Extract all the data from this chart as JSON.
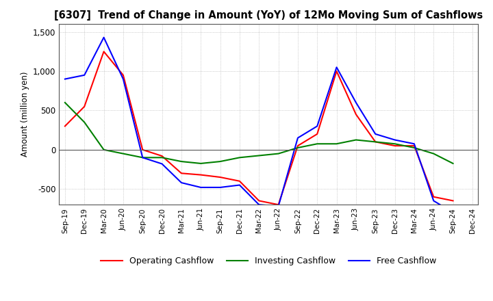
{
  "title": "[6307]  Trend of Change in Amount (YoY) of 12Mo Moving Sum of Cashflows",
  "ylabel": "Amount (million yen)",
  "ylim": [
    -700,
    1600
  ],
  "yticks": [
    -500,
    0,
    500,
    1000,
    1500
  ],
  "x_labels": [
    "Sep-19",
    "Dec-19",
    "Mar-20",
    "Jun-20",
    "Sep-20",
    "Dec-20",
    "Mar-21",
    "Jun-21",
    "Sep-21",
    "Dec-21",
    "Mar-22",
    "Jun-22",
    "Sep-22",
    "Dec-22",
    "Mar-23",
    "Jun-23",
    "Sep-23",
    "Dec-23",
    "Mar-24",
    "Jun-24",
    "Sep-24",
    "Dec-24"
  ],
  "operating": [
    300,
    550,
    1250,
    950,
    0,
    -80,
    -300,
    -320,
    -350,
    -400,
    -650,
    -700,
    50,
    200,
    1000,
    450,
    100,
    50,
    50,
    -600,
    -650,
    null
  ],
  "investing": [
    600,
    350,
    0,
    -50,
    -100,
    -100,
    -150,
    -175,
    -150,
    -100,
    -75,
    -50,
    25,
    75,
    75,
    125,
    100,
    75,
    25,
    -50,
    -175,
    null
  ],
  "free": [
    900,
    950,
    1430,
    900,
    -100,
    -180,
    -420,
    -480,
    -480,
    -450,
    -700,
    -720,
    150,
    300,
    1050,
    600,
    200,
    125,
    75,
    -650,
    -800,
    null
  ],
  "operating_color": "#ff0000",
  "investing_color": "#008000",
  "free_color": "#0000ff",
  "bg_color": "#ffffff",
  "grid_color": "#aaaaaa"
}
